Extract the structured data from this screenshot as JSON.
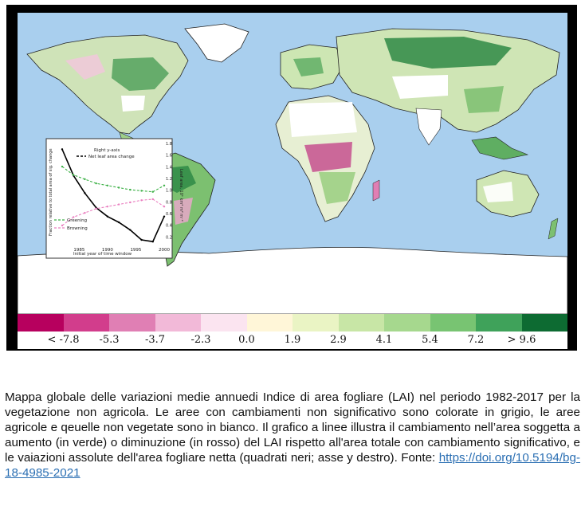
{
  "legend": {
    "colors": [
      "#b7005e",
      "#d23d8c",
      "#e07fb4",
      "#f2b9d8",
      "#fbe4f0",
      "#fff6d8",
      "#eaf4c4",
      "#c8e6a6",
      "#a6d88e",
      "#78c472",
      "#3fa25a",
      "#0d6b32"
    ],
    "ticks": [
      "< -7.8",
      "-5.3",
      "-3.7",
      "-2.3",
      "0.0",
      "1.9",
      "2.9",
      "4.1",
      "5.4",
      "7.2",
      "> 9.6"
    ]
  },
  "inset": {
    "y_left_label": "Fraction relative to total area of sig. change",
    "y_right_label": "Leaf area, 10¹ km² m² m⁻²",
    "x_label": "Initial year of time window",
    "right_axis_note": "Right y-axis",
    "legend_net": "Net leaf area change",
    "legend_greening": "Greening",
    "legend_browning": "Browning",
    "x_ticks": [
      "1985",
      "1990",
      "1995",
      "2000"
    ],
    "y_right_ticks": [
      "1.8",
      "1.6",
      "1.4",
      "1.2",
      "1.0",
      "0.8",
      "0.6",
      "0.4",
      "0.2"
    ]
  },
  "chart_data": {
    "type": "line",
    "x": [
      1982,
      1984,
      1986,
      1988,
      1990,
      1992,
      1994,
      1996,
      1998,
      2000
    ],
    "series": [
      {
        "name": "Net leaf area change",
        "values": [
          1.7,
          1.25,
          0.95,
          0.7,
          0.55,
          0.45,
          0.32,
          0.15,
          0.12,
          0.55
        ]
      },
      {
        "name": "Greening",
        "values": [
          0.78,
          0.7,
          0.66,
          0.62,
          0.6,
          0.58,
          0.56,
          0.55,
          0.54,
          0.6
        ]
      },
      {
        "name": "Browning",
        "values": [
          0.22,
          0.3,
          0.34,
          0.38,
          0.4,
          0.42,
          0.44,
          0.46,
          0.47,
          0.4
        ]
      }
    ],
    "xlabel": "Initial year of time window",
    "ylabel": "Fraction relative to total area of sig. change",
    "ylabel_right": "Leaf area, 10¹ km² m² m⁻²",
    "xlim": [
      1982,
      2000
    ],
    "ylim_right": [
      0.2,
      1.8
    ]
  },
  "caption": {
    "text": "Mappa globale delle variazioni medie annuedi Indice di area fogliare (LAI) nel periodo 1982-2017 per la vegetazione non agricola. Le aree con cambiamenti non significativo sono colorate in grigio, le aree agricole e qeuelle non vegetate sono in bianco. Il grafico a linee illustra il cambiamento nell’area soggetta a aumento (in verde) o diminuzione (in rosso) del LAI rispetto all'area totale con cambiamento significativo, e le vaiazioni assolute dell'area fogliare netta (quadrati neri; asse y destro). Fonte: ",
    "link": "https://doi.org/10.5194/bg-18-4985-2021"
  }
}
